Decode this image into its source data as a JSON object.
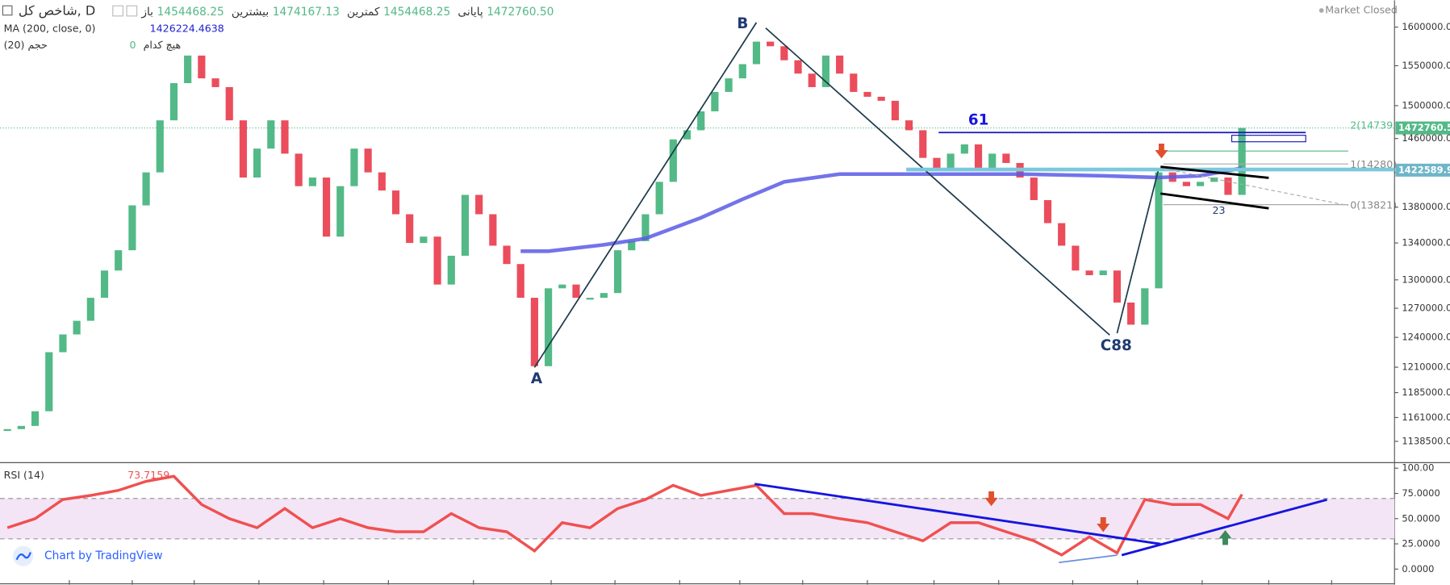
{
  "chart_data": [
    {
      "type": "candlestick",
      "title": "شاخص کل, D",
      "info": [
        {
          "label": "باز",
          "text": "1454468.25"
        },
        {
          "label": "بیشترین",
          "text": "1474167.13"
        },
        {
          "label": "کمترین",
          "text": "1454468.25"
        },
        {
          "label": "پایانی",
          "text": "1472760.50"
        }
      ],
      "status": "Market Closed",
      "indicators": [
        {
          "label": "MA (200, close, 0)",
          "text": "1426224.4638"
        },
        {
          "label": "حجم (20)",
          "text": "هیچ کدام",
          "extra": "0"
        }
      ],
      "log_scale": true,
      "xlim": [
        0,
        100
      ],
      "ylim": [
        1118750,
        1635600
      ],
      "yticks": [
        {
          "value": 1600000,
          "label": "1600000.00"
        },
        {
          "value": 1550000,
          "label": "1550000.00"
        },
        {
          "value": 1500000,
          "label": "1500000.00"
        },
        {
          "value": 1460000,
          "label": "1460000.00"
        },
        {
          "value": 1420000,
          "label": "1420000.00"
        },
        {
          "value": 1380000,
          "label": "1380000.00"
        },
        {
          "value": 1340000,
          "label": "1340000.00"
        },
        {
          "value": 1300000,
          "label": "1300000.00"
        },
        {
          "value": 1270000,
          "label": "1270000.00"
        },
        {
          "value": 1240000,
          "label": "1240000.00"
        },
        {
          "value": 1210000,
          "label": "1210000.00"
        },
        {
          "value": 1185000,
          "label": "1185000.00"
        },
        {
          "value": 1161000,
          "label": "1161000.00"
        },
        {
          "value": 1138500,
          "label": "1138500.00"
        }
      ],
      "series": [
        {
          "name": "شاخص کل",
          "up_color": "#53b987",
          "down_color": "#eb4d5c",
          "values": [
            1150000,
            1153000,
            1167000,
            1225000,
            1243000,
            1257000,
            1281000,
            1310000,
            1332000,
            1382000,
            1420000,
            1482000,
            1528000,
            1563000,
            1534000,
            1523000,
            1482000,
            1414000,
            1448000,
            1482000,
            1442000,
            1404000,
            1414000,
            1347000,
            1404000,
            1448000,
            1420000,
            1399000,
            1372000,
            1340000,
            1347000,
            1295000,
            1326000,
            1394000,
            1372000,
            1337000,
            1317000,
            1281000,
            1211000,
            1291000,
            1295000,
            1281000,
            1281000,
            1286000,
            1332000,
            1342000,
            1372000,
            1409000,
            1459000,
            1470000,
            1493000,
            1517000,
            1534000,
            1552000,
            1581000,
            1575000,
            1557000,
            1540000,
            1523000,
            1563000,
            1540000,
            1517000,
            1511000,
            1506000,
            1482000,
            1470000,
            1437000,
            1425000,
            1442000,
            1453000,
            1425000,
            1442000,
            1431000,
            1414000,
            1388000,
            1362000,
            1337000,
            1310000,
            1305000,
            1310000,
            1276000,
            1253000,
            1291000,
            1420000,
            1409000,
            1404000,
            1409000,
            1414000,
            1394000,
            1472760.5
          ]
        },
        {
          "name": "MA (200, close, 0)",
          "color": "#5a5ae6",
          "x": [
            37,
            39,
            43,
            46,
            50,
            53,
            56,
            60,
            63,
            66,
            73,
            79,
            83,
            86,
            89
          ],
          "values": [
            1331000,
            1331000,
            1338000,
            1345000,
            1368000,
            1389000,
            1409000,
            1418000,
            1418000,
            1418000,
            1418000,
            1416000,
            1414000,
            1416000,
            1425000
          ]
        }
      ],
      "price_labels": [
        {
          "value": 1472760.5,
          "label": "1472760.50",
          "color": "#53b987"
        },
        {
          "value": 1422589.92,
          "label": "1422589.92",
          "color": "#6fb5c8"
        }
      ],
      "annotations": [
        "A",
        "B",
        "C88",
        "61",
        "23",
        "2(14739",
        "1(14280)",
        "0(13821)"
      ]
    },
    {
      "type": "line",
      "title": "RSI (14)",
      "last": "73.7159",
      "credit": "Chart by TradingView",
      "xlim": [
        0,
        100
      ],
      "ylim": [
        -15.5,
        105.5
      ],
      "yticks": [
        {
          "value": 100,
          "label": "100.00"
        },
        {
          "value": 75,
          "label": "75.0000"
        },
        {
          "value": 50,
          "label": "50.0000"
        },
        {
          "value": 25,
          "label": "25.0000"
        },
        {
          "value": 0,
          "label": "0.0000"
        }
      ],
      "levels": [
        30,
        70
      ],
      "band_color": "#f3e5f5",
      "series": [
        {
          "name": "RSI (14)",
          "color": "#f05050",
          "x": [
            0,
            2,
            4,
            6,
            8,
            10,
            12,
            14,
            16,
            18,
            20,
            22,
            24,
            26,
            28,
            30,
            32,
            34,
            36,
            38,
            40,
            42,
            44,
            46,
            48,
            50,
            52,
            54,
            56,
            58,
            60,
            62,
            64,
            66,
            68,
            70,
            72,
            74,
            76,
            78,
            80,
            82,
            84,
            86,
            88,
            89
          ],
          "values": [
            41,
            50,
            69,
            73,
            78,
            87,
            92,
            64,
            50,
            41,
            60,
            41,
            50,
            41,
            37,
            37,
            55,
            41,
            37,
            18,
            46,
            41,
            60,
            69,
            83,
            73,
            78,
            83,
            55,
            55,
            50,
            46,
            37,
            28,
            46,
            46,
            37,
            28,
            14,
            32,
            16,
            69,
            64,
            64,
            50,
            74
          ]
        }
      ]
    }
  ]
}
